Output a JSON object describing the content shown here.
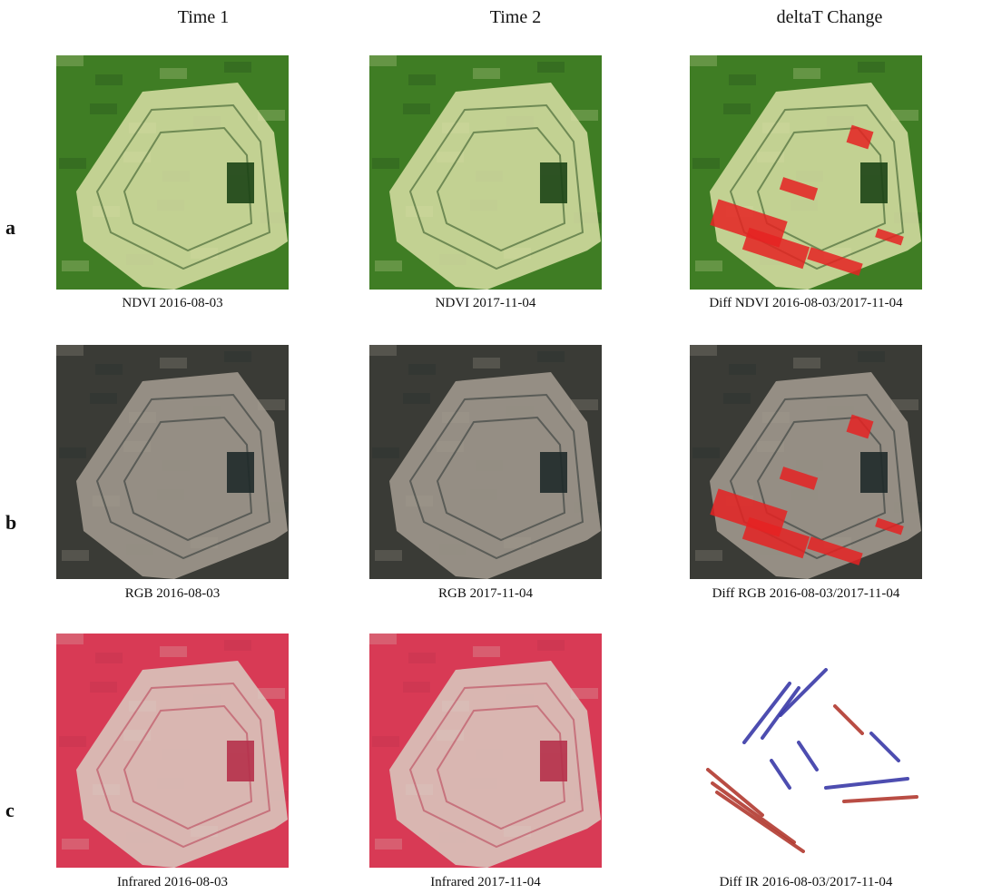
{
  "columns": [
    "Time 1",
    "Time 2",
    "deltaT Change"
  ],
  "rows": [
    {
      "label": "a",
      "captions": [
        "NDVI 2016-08-03",
        "NDVI 2017-11-04",
        "Diff NDVI 2016-08-03/2017-11-04"
      ]
    },
    {
      "label": "b",
      "captions": [
        "RGB 2016-08-03",
        "RGB 2017-11-04",
        "Diff RGB 2016-08-03/2017-11-04"
      ]
    },
    {
      "label": "c",
      "captions": [
        "Infrared 2016-08-03",
        "Infrared 2017-11-04",
        "Diff IR 2016-08-03/2017-11-04"
      ]
    }
  ],
  "palette": {
    "ndvi_bg": "#3f7d24",
    "ndvi_pit": "#d9dfa6",
    "ndvi_dark": "#1c4416",
    "rgb_bg": "#3a3b36",
    "rgb_pit": "#a69e92",
    "rgb_dark": "#1f2a2a",
    "ir_bg": "#d83a55",
    "ir_pit": "#d9cdc2",
    "ir_dark": "#b5304a",
    "change_red": "#e52222",
    "change_blue": "#3a3aa8",
    "change_brown": "#b23a30"
  }
}
